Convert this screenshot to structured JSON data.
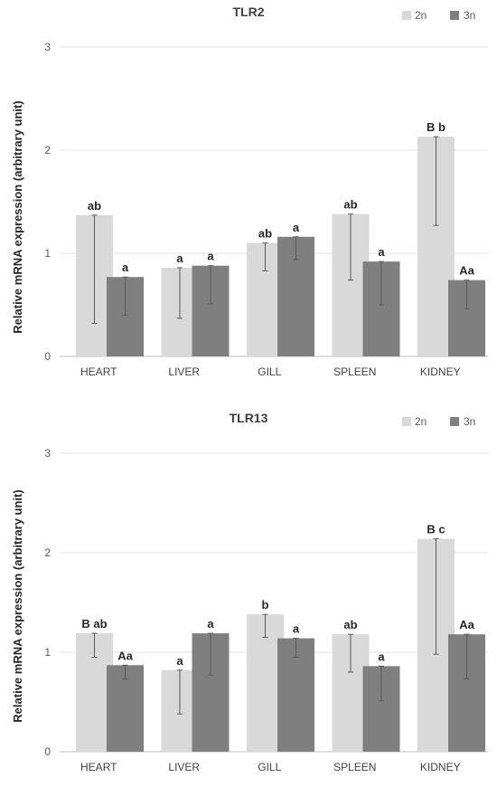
{
  "chart_data": [
    {
      "type": "bar",
      "title": "TLR2",
      "ylabel": "Relative mRNA expression (arbitrary unit)",
      "xlabel": "",
      "ylim": [
        0,
        3
      ],
      "yticks": [
        0,
        1,
        2,
        3
      ],
      "grid": true,
      "legend_position": "top-right",
      "categories": [
        "HEART",
        "LIVER",
        "GILL",
        "SPLEEN",
        "KIDNEY"
      ],
      "series": [
        {
          "name": "2n",
          "color": "#d9d9d9",
          "values": [
            1.37,
            0.86,
            1.1,
            1.38,
            2.13
          ],
          "error_low": [
            0.32,
            0.37,
            0.83,
            0.74,
            1.27
          ],
          "error_high": [
            1.37,
            0.86,
            1.1,
            1.38,
            2.13
          ],
          "labels": [
            "ab",
            "a",
            "ab",
            "ab",
            "B b"
          ]
        },
        {
          "name": "3n",
          "color": "#7f7f7f",
          "values": [
            0.77,
            0.88,
            1.16,
            0.92,
            0.74
          ],
          "error_low": [
            0.4,
            0.51,
            0.94,
            0.5,
            0.46
          ],
          "error_high": [
            0.77,
            0.88,
            1.16,
            0.92,
            0.74
          ],
          "labels": [
            "a",
            "a",
            "a",
            "a",
            "Aa"
          ]
        }
      ]
    },
    {
      "type": "bar",
      "title": "TLR13",
      "ylabel": "Relative mRNA expression (arbitrary unit)",
      "xlabel": "",
      "ylim": [
        0,
        3
      ],
      "yticks": [
        0,
        1,
        2,
        3
      ],
      "grid": true,
      "legend_position": "top-right",
      "categories": [
        "HEART",
        "LIVER",
        "GILL",
        "SPLEEN",
        "KIDNEY"
      ],
      "series": [
        {
          "name": "2n",
          "color": "#d9d9d9",
          "values": [
            1.19,
            0.82,
            1.38,
            1.18,
            2.14
          ],
          "error_low": [
            0.95,
            0.38,
            1.15,
            0.8,
            0.98
          ],
          "error_high": [
            1.19,
            0.82,
            1.38,
            1.18,
            2.14
          ],
          "labels": [
            "B ab",
            "a",
            "b",
            "ab",
            "B c"
          ]
        },
        {
          "name": "3n",
          "color": "#7f7f7f",
          "values": [
            0.87,
            1.19,
            1.14,
            0.86,
            1.18
          ],
          "error_low": [
            0.73,
            0.77,
            0.95,
            0.51,
            0.73
          ],
          "error_high": [
            0.87,
            1.19,
            1.14,
            0.86,
            1.18
          ],
          "labels": [
            "Aa",
            "a",
            "a",
            "a",
            "Aa"
          ]
        }
      ]
    }
  ]
}
